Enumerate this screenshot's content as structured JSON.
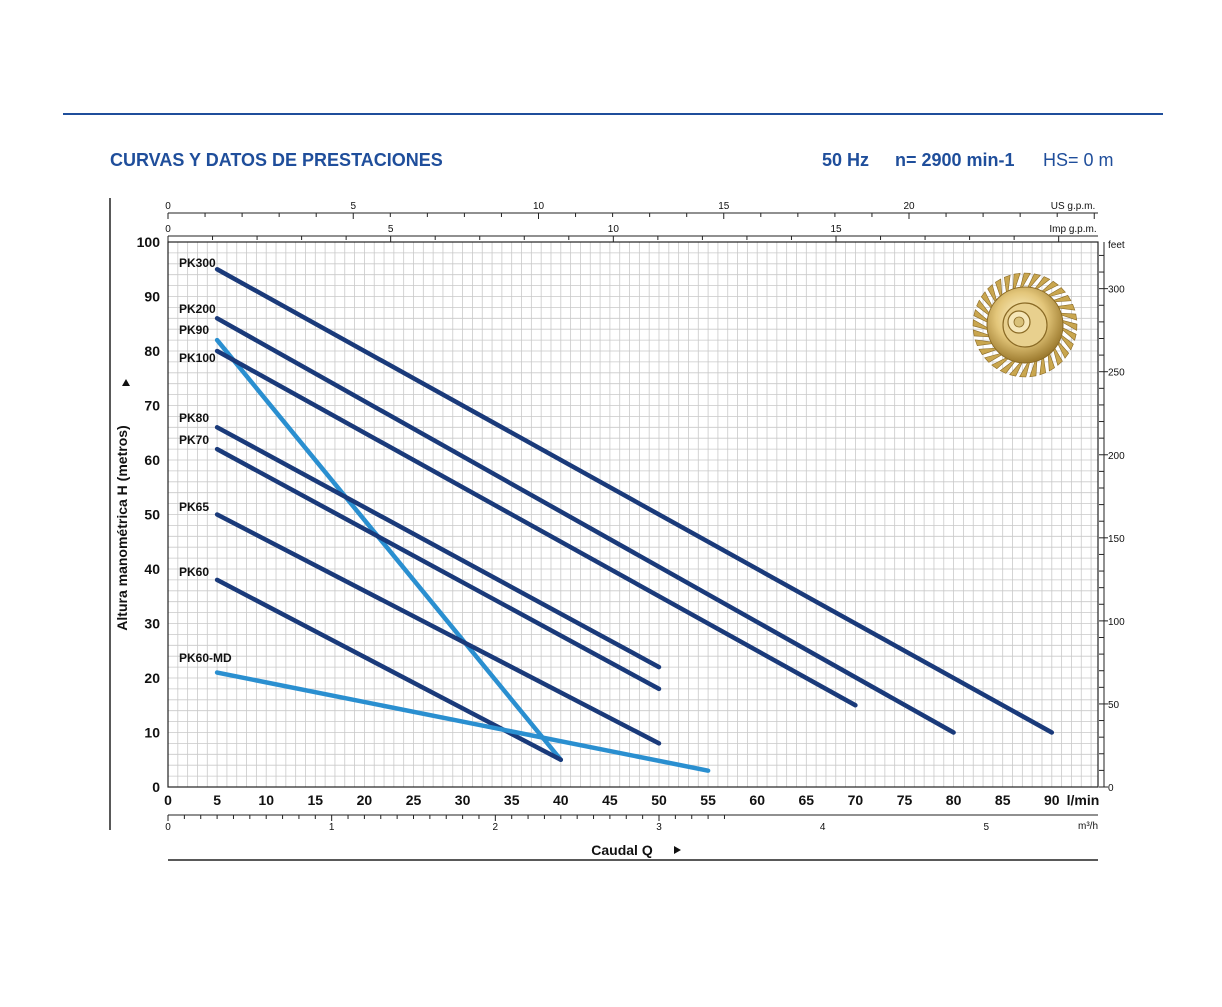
{
  "header": {
    "title": "CURVAS Y DATOS DE PRESTACIONES",
    "freq": "50 Hz",
    "speed": "n= 2900 min-1",
    "hs": "HS= 0 m"
  },
  "chart_data": {
    "type": "line",
    "xlabel": "Caudal Q",
    "ylabel": "Altura manométrica H (metros)",
    "x_unit": "l/min",
    "xlim": [
      0,
      95
    ],
    "ylim": [
      0,
      100
    ],
    "x_ticks": [
      0,
      5,
      10,
      15,
      20,
      25,
      30,
      35,
      40,
      45,
      50,
      55,
      60,
      65,
      70,
      75,
      80,
      85,
      90
    ],
    "y_ticks": [
      0,
      10,
      20,
      30,
      40,
      50,
      60,
      70,
      80,
      90,
      100
    ],
    "axis_m3h": {
      "unit": "m³/h",
      "ticks": [
        0,
        1,
        2,
        3,
        4,
        5
      ]
    },
    "axis_usgpm": {
      "unit": "US g.p.m.",
      "ticks": [
        0,
        5,
        10,
        15,
        20
      ]
    },
    "axis_impgpm": {
      "unit": "Imp g.p.m.",
      "ticks": [
        0,
        5,
        10,
        15
      ]
    },
    "axis_feet": {
      "unit": "feet",
      "ticks": [
        0,
        50,
        100,
        150,
        200,
        250,
        300
      ]
    },
    "series": [
      {
        "name": "PK300",
        "color": "#1a3a7a",
        "points": [
          [
            5,
            95
          ],
          [
            90,
            10
          ]
        ]
      },
      {
        "name": "PK200",
        "color": "#1a3a7a",
        "points": [
          [
            5,
            86
          ],
          [
            80,
            10
          ]
        ]
      },
      {
        "name": "PK90",
        "color": "#2a8fd0",
        "points": [
          [
            5,
            82
          ],
          [
            40,
            5
          ]
        ]
      },
      {
        "name": "PK100",
        "color": "#1a3a7a",
        "points": [
          [
            5,
            80
          ],
          [
            70,
            15
          ]
        ]
      },
      {
        "name": "PK80",
        "color": "#1a3a7a",
        "points": [
          [
            5,
            66
          ],
          [
            50,
            22
          ]
        ]
      },
      {
        "name": "PK70",
        "color": "#1a3a7a",
        "points": [
          [
            5,
            62
          ],
          [
            50,
            18
          ]
        ]
      },
      {
        "name": "PK65",
        "color": "#1a3a7a",
        "points": [
          [
            5,
            50
          ],
          [
            50,
            8
          ]
        ]
      },
      {
        "name": "PK60",
        "color": "#1a3a7a",
        "points": [
          [
            5,
            38
          ],
          [
            40,
            5
          ]
        ]
      },
      {
        "name": "PK60-MD",
        "color": "#2a8fd0",
        "points": [
          [
            5,
            21
          ],
          [
            55,
            3
          ]
        ]
      }
    ]
  }
}
